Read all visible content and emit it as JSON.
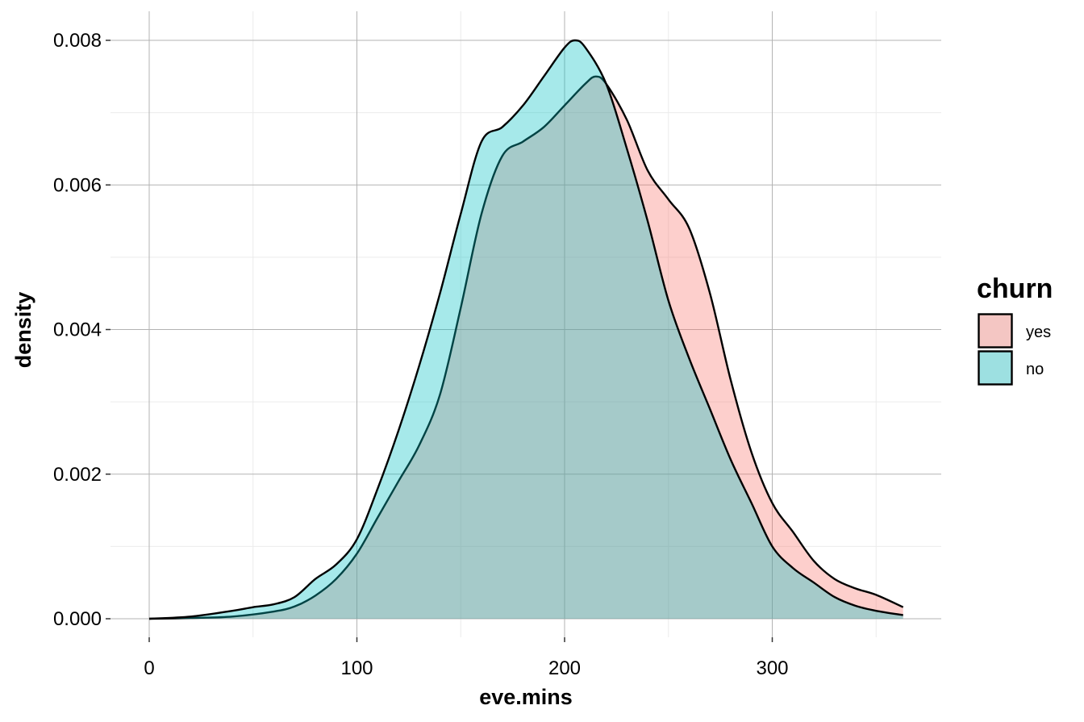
{
  "chart_data": {
    "type": "area",
    "subtype": "density",
    "xlabel": "eve.mins",
    "ylabel": "density",
    "xlim": [
      0,
      363
    ],
    "ylim": [
      0,
      0.008
    ],
    "x_ticks": [
      0,
      100,
      200,
      300
    ],
    "x_tick_labels": [
      "0",
      "100",
      "200",
      "300"
    ],
    "y_ticks": [
      0,
      0.002,
      0.004,
      0.006,
      0.008
    ],
    "y_tick_labels": [
      "0.000",
      "0.002",
      "0.004",
      "0.006",
      "0.008"
    ],
    "grid": true,
    "legend": {
      "title": "churn",
      "position": "right",
      "entries": [
        {
          "label": "yes",
          "color": "#F8766D"
        },
        {
          "label": "no",
          "color": "#00BFC4"
        }
      ]
    },
    "series": [
      {
        "name": "yes",
        "color": "#F8766D",
        "x": [
          0,
          20,
          40,
          60,
          70,
          80,
          90,
          100,
          110,
          120,
          130,
          140,
          150,
          160,
          170,
          180,
          190,
          200,
          210,
          215,
          220,
          230,
          240,
          250,
          260,
          270,
          280,
          290,
          300,
          310,
          320,
          330,
          340,
          350,
          363
        ],
        "y": [
          0.0,
          1e-05,
          3e-05,
          0.0001,
          0.00017,
          0.00032,
          0.00055,
          0.0009,
          0.0014,
          0.0019,
          0.0024,
          0.0031,
          0.0043,
          0.0056,
          0.0064,
          0.0066,
          0.0068,
          0.0071,
          0.0074,
          0.0075,
          0.0074,
          0.0069,
          0.0062,
          0.0058,
          0.0054,
          0.0045,
          0.0033,
          0.0023,
          0.0016,
          0.0012,
          0.0008,
          0.00055,
          0.00042,
          0.00033,
          0.00016
        ]
      },
      {
        "name": "no",
        "color": "#00BFC4",
        "x": [
          0,
          20,
          40,
          50,
          60,
          70,
          80,
          90,
          100,
          110,
          120,
          130,
          140,
          150,
          160,
          170,
          180,
          190,
          200,
          205,
          210,
          220,
          230,
          240,
          250,
          260,
          270,
          280,
          290,
          300,
          310,
          320,
          330,
          340,
          350,
          363
        ],
        "y": [
          0.0,
          3e-05,
          0.00011,
          0.00016,
          0.0002,
          0.0003,
          0.00055,
          0.00075,
          0.0011,
          0.0018,
          0.0026,
          0.0035,
          0.0045,
          0.0056,
          0.0066,
          0.0068,
          0.0071,
          0.0075,
          0.0079,
          0.008,
          0.0079,
          0.0074,
          0.0065,
          0.0055,
          0.0044,
          0.0036,
          0.0029,
          0.0022,
          0.0016,
          0.001,
          0.0007,
          0.0005,
          0.0003,
          0.00018,
          0.00011,
          5e-05
        ]
      }
    ]
  }
}
